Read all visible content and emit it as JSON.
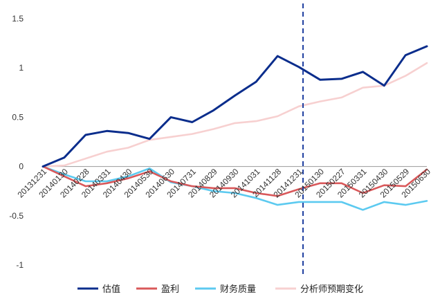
{
  "chart_data": {
    "type": "line",
    "categories": [
      "20131231",
      "20140130",
      "20140228",
      "20140331",
      "20140430",
      "20140530",
      "20140630",
      "20140731",
      "20140829",
      "20140930",
      "20141031",
      "20141128",
      "20141231",
      "20150130",
      "20150227",
      "20150331",
      "20150430",
      "20150529",
      "20150630"
    ],
    "series": [
      {
        "name": "估值",
        "color": "#0a2d8c",
        "values": [
          0,
          0.09,
          0.32,
          0.36,
          0.34,
          0.28,
          0.5,
          0.45,
          0.57,
          0.72,
          0.86,
          1.12,
          1.01,
          0.88,
          0.89,
          0.96,
          0.82,
          1.13,
          1.22
        ]
      },
      {
        "name": "盈利",
        "color": "#d9585a",
        "values": [
          0,
          -0.1,
          -0.2,
          -0.17,
          -0.12,
          -0.05,
          -0.15,
          -0.2,
          -0.22,
          -0.22,
          -0.27,
          -0.3,
          -0.23,
          -0.17,
          -0.17,
          -0.27,
          -0.19,
          -0.2,
          -0.03
        ]
      },
      {
        "name": "财务质量",
        "color": "#5ccaf0",
        "values": [
          0,
          -0.08,
          -0.15,
          -0.15,
          -0.1,
          -0.02,
          -0.16,
          -0.2,
          -0.25,
          -0.27,
          -0.32,
          -0.39,
          -0.36,
          -0.36,
          -0.36,
          -0.44,
          -0.36,
          -0.39,
          -0.35
        ]
      },
      {
        "name": "分析师预期变化",
        "color": "#f7d0d0",
        "values": [
          0,
          0.01,
          0.08,
          0.15,
          0.19,
          0.27,
          0.3,
          0.33,
          0.38,
          0.44,
          0.46,
          0.51,
          0.61,
          0.66,
          0.7,
          0.8,
          0.82,
          0.92,
          1.05
        ]
      }
    ],
    "yticks": [
      "1.5",
      "1",
      "0.5",
      "0",
      "-0.5",
      "-1"
    ],
    "ylim": [
      -1,
      1.5
    ],
    "vertical_marker_category": "20141231",
    "grid": false,
    "legend": "bottom"
  }
}
